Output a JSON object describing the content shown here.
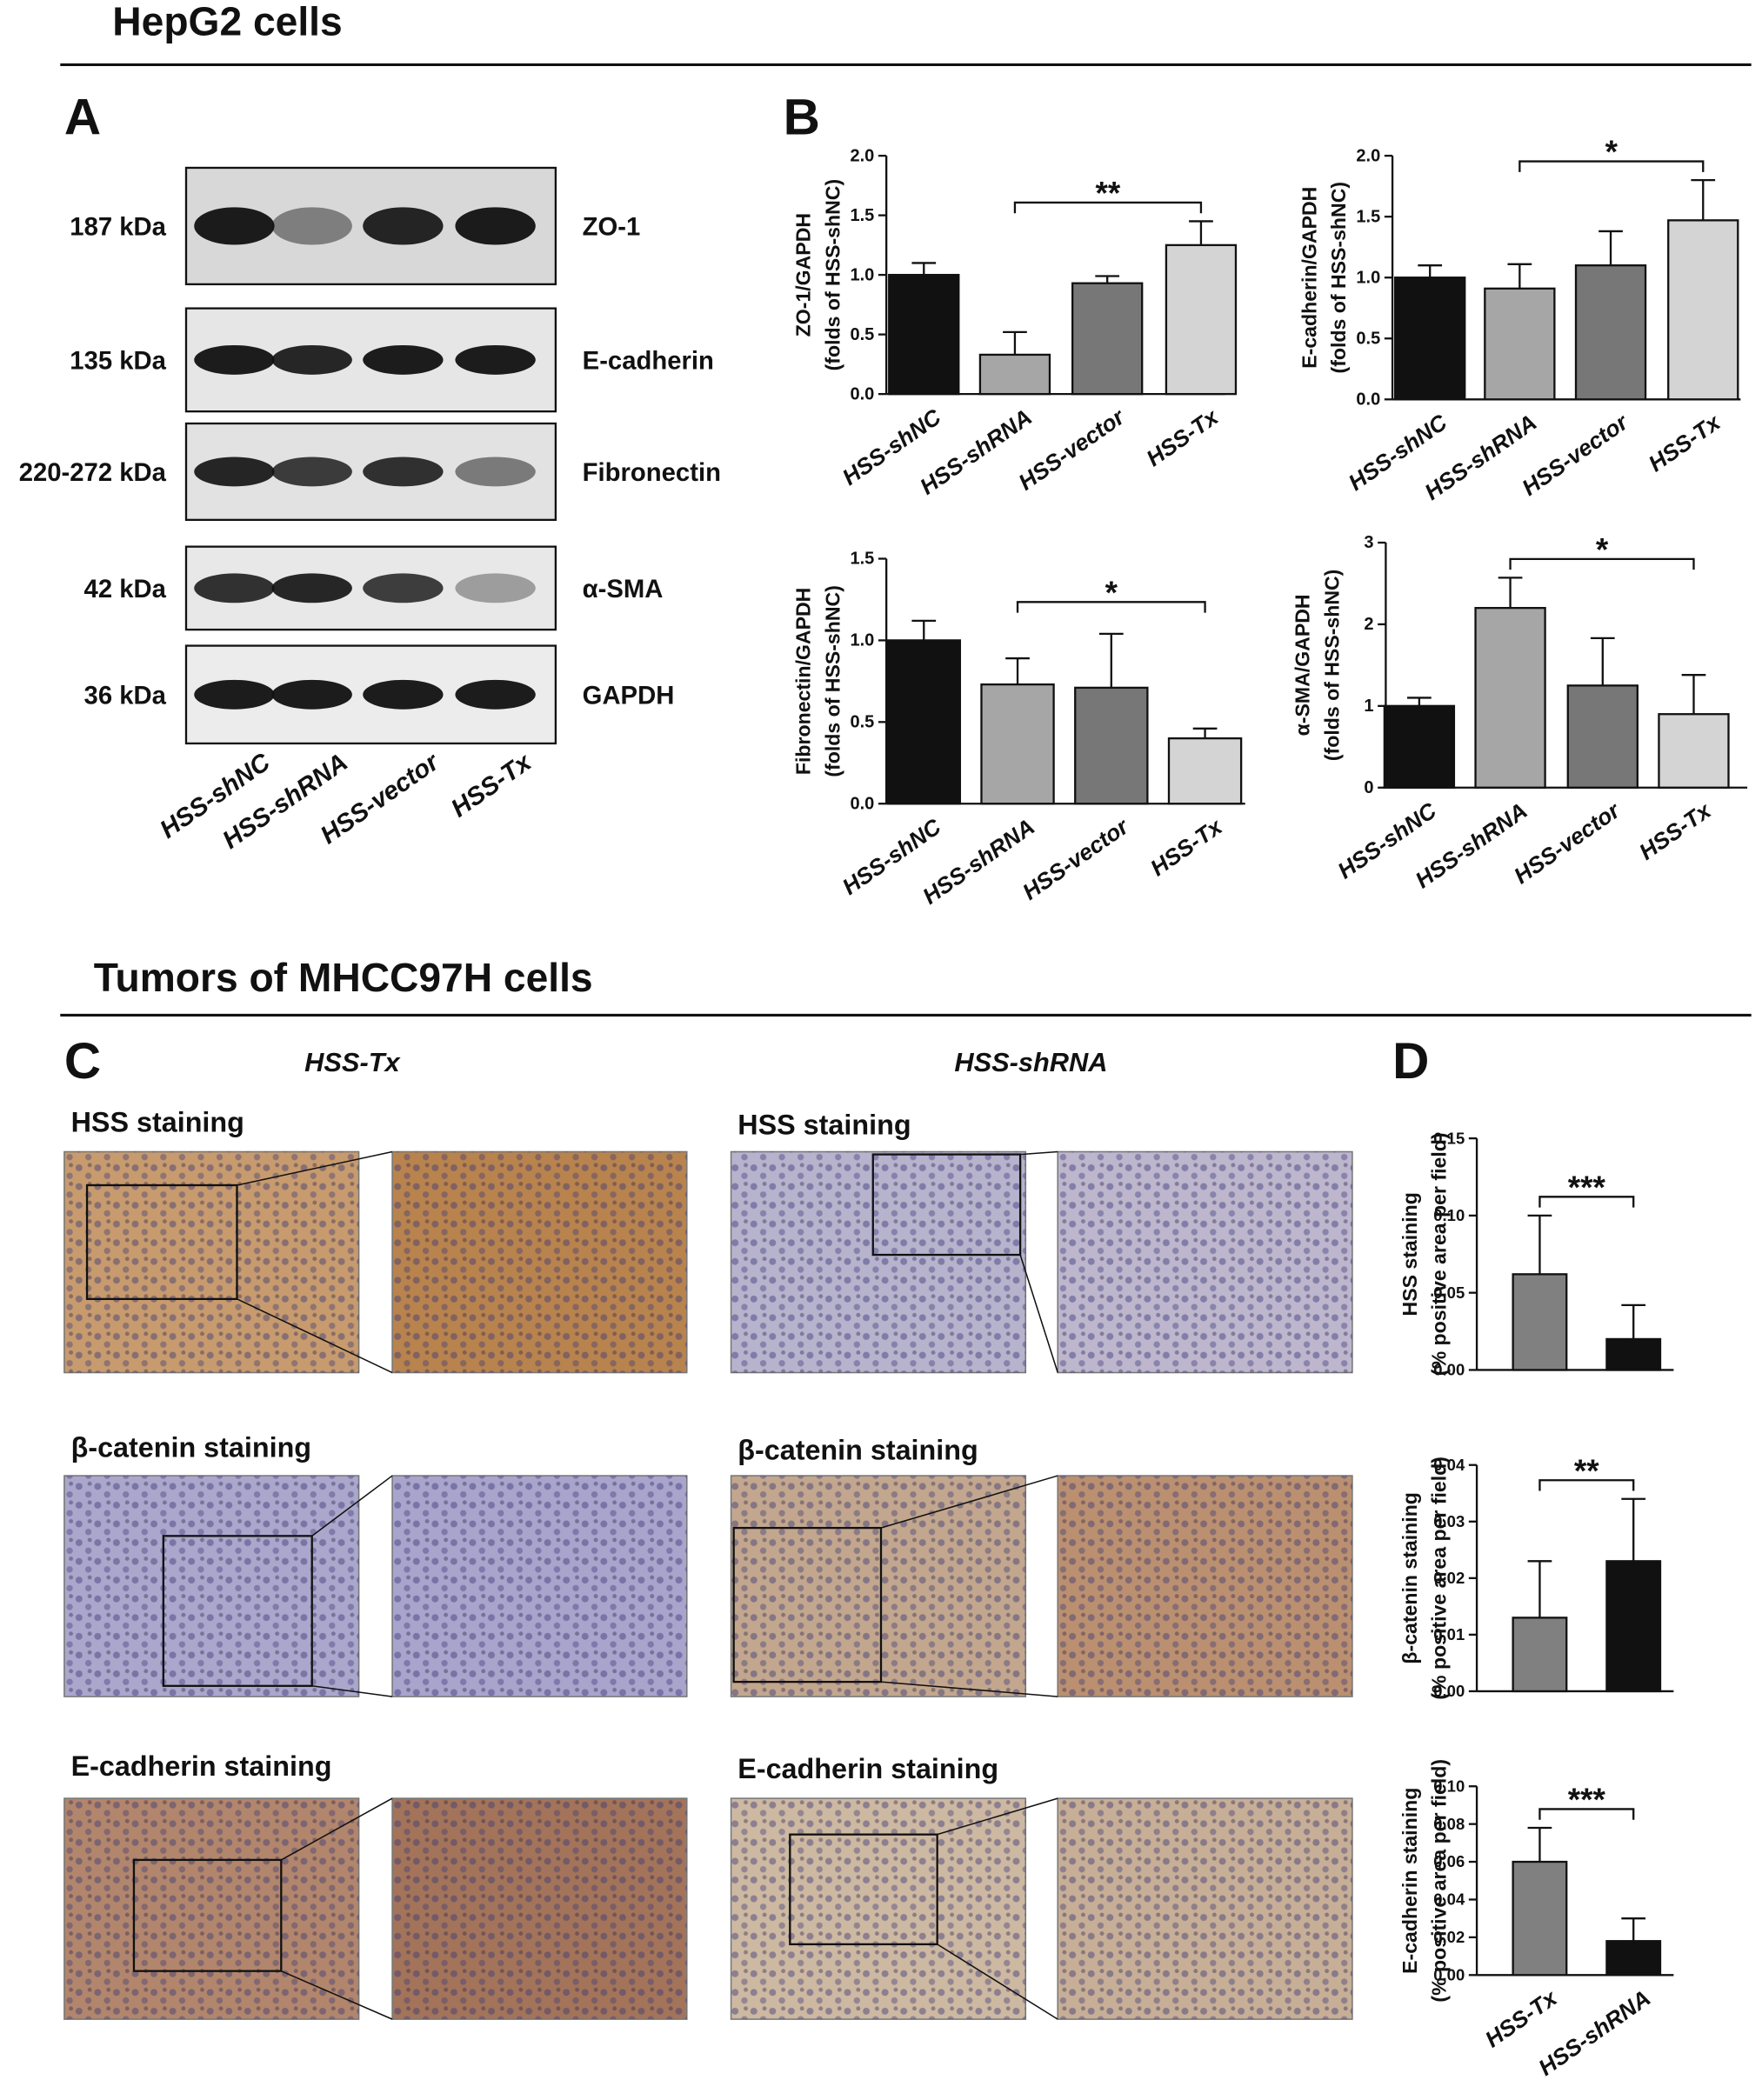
{
  "sections": [
    {
      "title": "HepG2 cells"
    },
    {
      "title": "Tumors of MHCC97H cells"
    }
  ],
  "panel_a": {
    "letter": "A",
    "blots": [
      {
        "size": "187 kDa",
        "protein": "ZO-1"
      },
      {
        "size": "135 kDa",
        "protein": "E-cadherin"
      },
      {
        "size": "220-272 kDa",
        "protein": "Fibronectin"
      },
      {
        "size": "42 kDa",
        "protein": "α-SMA"
      },
      {
        "size": "36 kDa",
        "protein": "GAPDH"
      }
    ],
    "lanes": [
      "HSS-shNC",
      "HSS-shRNA",
      "HSS-vector",
      "HSS-Tx"
    ]
  },
  "panel_b": {
    "letter": "B"
  },
  "panel_c": {
    "letter": "C",
    "groups": [
      "HSS-Tx",
      "HSS-shRNA"
    ],
    "stainings": [
      {
        "left": "HSS staining",
        "right": "HSS staining"
      },
      {
        "left": "β-catenin staining",
        "right": "β-catenin staining"
      },
      {
        "left": "E-cadherin staining",
        "right": "E-cadherin staining"
      }
    ]
  },
  "panel_d": {
    "letter": "D"
  },
  "chart_data": [
    {
      "type": "bar",
      "ylabel": [
        "ZO-1/GAPDH",
        "(folds of HSS-shNC)"
      ],
      "categories": [
        "HSS-shNC",
        "HSS-shRNA",
        "HSS-vector",
        "HSS-Tx"
      ],
      "values": [
        1.0,
        0.33,
        0.93,
        1.25
      ],
      "errors": [
        0.1,
        0.19,
        0.06,
        0.2
      ],
      "colors": [
        "#111111",
        "#a6a6a6",
        "#777777",
        "#d4d4d4"
      ],
      "ylim": [
        0,
        2
      ],
      "yticks": [
        {
          "value": 0,
          "label": "0.0"
        },
        0.5,
        {
          "value": 1,
          "label": "1.0"
        },
        1.5,
        {
          "value": 2,
          "label": "2.0"
        }
      ],
      "annotation": "**"
    },
    {
      "type": "bar",
      "ylabel": [
        "E-cadherin/GAPDH",
        "(folds of HSS-shNC)"
      ],
      "categories": [
        "HSS-shNC",
        "HSS-shRNA",
        "HSS-vector",
        "HSS-Tx"
      ],
      "values": [
        1.0,
        0.91,
        1.1,
        1.47
      ],
      "errors": [
        0.1,
        0.2,
        0.28,
        0.33
      ],
      "colors": [
        "#111111",
        "#a6a6a6",
        "#777777",
        "#d4d4d4"
      ],
      "ylim": [
        0,
        2
      ],
      "yticks": [
        {
          "value": 0,
          "label": "0.0"
        },
        0.5,
        {
          "value": 1,
          "label": "1.0"
        },
        1.5,
        {
          "value": 2,
          "label": "2.0"
        }
      ],
      "annotation": "*"
    },
    {
      "type": "bar",
      "ylabel": [
        "Fibronectin/GAPDH",
        "(folds of HSS-shNC)"
      ],
      "categories": [
        "HSS-shNC",
        "HSS-shRNA",
        "HSS-vector",
        "HSS-Tx"
      ],
      "values": [
        1.0,
        0.73,
        0.71,
        0.4
      ],
      "errors": [
        0.12,
        0.16,
        0.33,
        0.06
      ],
      "colors": [
        "#111111",
        "#a6a6a6",
        "#777777",
        "#d4d4d4"
      ],
      "ylim": [
        0,
        1.5
      ],
      "yticks": [
        {
          "value": 0,
          "label": "0.0"
        },
        0.5,
        {
          "value": 1,
          "label": "1.0"
        },
        1.5
      ],
      "annotation": "*"
    },
    {
      "type": "bar",
      "ylabel": [
        "α-SMA/GAPDH",
        "(folds of HSS-shNC)"
      ],
      "categories": [
        "HSS-shNC",
        "HSS-shRNA",
        "HSS-vector",
        "HSS-Tx"
      ],
      "values": [
        1.0,
        2.2,
        1.25,
        0.9
      ],
      "errors": [
        0.1,
        0.37,
        0.58,
        0.48
      ],
      "colors": [
        "#111111",
        "#a6a6a6",
        "#777777",
        "#d4d4d4"
      ],
      "ylim": [
        0,
        3
      ],
      "yticks": [
        0,
        1,
        2,
        3
      ],
      "annotation": "*"
    },
    {
      "type": "bar",
      "ylabel": [
        "HSS staining",
        "(% positive area per field)"
      ],
      "values": [
        0.062,
        0.02
      ],
      "errors": [
        0.038,
        0.022
      ],
      "colors": [
        "#808080",
        "#111111"
      ],
      "ylim": [
        0,
        0.15
      ],
      "yticks": [
        {
          "value": 0,
          "label": "0.00"
        },
        0.05,
        {
          "value": 0.1,
          "label": "0.10"
        },
        0.15
      ],
      "annotation": "***"
    },
    {
      "type": "bar",
      "ylabel": [
        "β-catenin staining",
        "(% positive area per field)"
      ],
      "values": [
        0.013,
        0.023
      ],
      "errors": [
        0.01,
        0.011
      ],
      "colors": [
        "#808080",
        "#111111"
      ],
      "ylim": [
        0,
        0.04
      ],
      "yticks": [
        {
          "value": 0,
          "label": "0.00"
        },
        0.01,
        0.02,
        0.03,
        0.04
      ],
      "annotation": "**"
    },
    {
      "type": "bar",
      "ylabel": [
        "E-cadherin staining",
        "(% positive area per field)"
      ],
      "categories": [
        "HSS-Tx",
        "HSS-shRNA"
      ],
      "values": [
        0.06,
        0.018
      ],
      "errors": [
        0.018,
        0.012
      ],
      "colors": [
        "#808080",
        "#111111"
      ],
      "ylim": [
        0,
        0.1
      ],
      "yticks": [
        {
          "value": 0,
          "label": "0.00"
        },
        0.02,
        0.04,
        0.06,
        0.08,
        {
          "value": 0.1,
          "label": "0.10"
        }
      ],
      "annotation": "***"
    }
  ]
}
